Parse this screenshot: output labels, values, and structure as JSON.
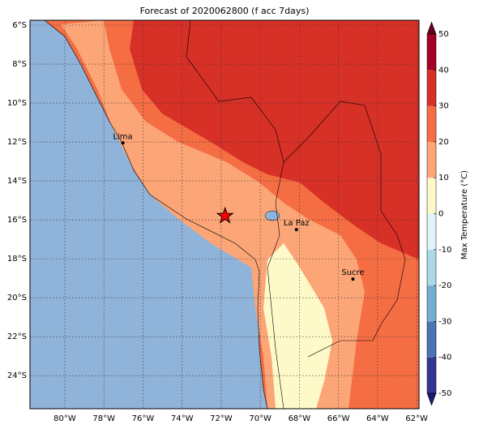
{
  "map": {
    "title": "Forecast of 2020062800 (f acc 7days)",
    "lonlim": [
      -81.78,
      -61.88
    ],
    "latlim": [
      -25.7,
      -5.75
    ],
    "lon_ticks": [
      {
        "value": -80,
        "label": "80°W"
      },
      {
        "value": -78,
        "label": "78°W"
      },
      {
        "value": -76,
        "label": "76°W"
      },
      {
        "value": -74,
        "label": "74°W"
      },
      {
        "value": -72,
        "label": "72°W"
      },
      {
        "value": -70,
        "label": "70°W"
      },
      {
        "value": -68,
        "label": "68°W"
      },
      {
        "value": -66,
        "label": "66°W"
      },
      {
        "value": -64,
        "label": "64°W"
      },
      {
        "value": -62,
        "label": "62°W"
      }
    ],
    "lat_ticks": [
      {
        "value": -6,
        "label": "6°S"
      },
      {
        "value": -8,
        "label": "8°S"
      },
      {
        "value": -10,
        "label": "10°S"
      },
      {
        "value": -12,
        "label": "12°S"
      },
      {
        "value": -14,
        "label": "14°S"
      },
      {
        "value": -16,
        "label": "16°S"
      },
      {
        "value": -18,
        "label": "18°S"
      },
      {
        "value": -20,
        "label": "20°S"
      },
      {
        "value": -22,
        "label": "22°S"
      },
      {
        "value": -24,
        "label": "24°S"
      }
    ],
    "grid": true,
    "cities": [
      {
        "name": "Lima",
        "lon": -77.03,
        "lat": -12.05
      },
      {
        "name": "La Paz",
        "lon": -68.15,
        "lat": -16.5
      },
      {
        "name": "Sucre",
        "lon": -65.26,
        "lat": -19.04
      }
    ],
    "star": {
      "lon": -71.8,
      "lat": -15.8,
      "color": "#ff0000"
    },
    "colorbar": {
      "label": "Max Temperature (°C)",
      "lim": [
        -50,
        50
      ],
      "ticks": [
        -50,
        -40,
        -30,
        -20,
        -10,
        0,
        10,
        20,
        30,
        40,
        50
      ],
      "colors": [
        "#313695",
        "#4a74b4",
        "#74add1",
        "#abd9e9",
        "#e0f3f8",
        "#fef9c9",
        "#fca577",
        "#f46d43",
        "#d73027",
        "#a50026"
      ],
      "extend_colors": [
        "#1a1a6e",
        "#67001f"
      ]
    }
  }
}
